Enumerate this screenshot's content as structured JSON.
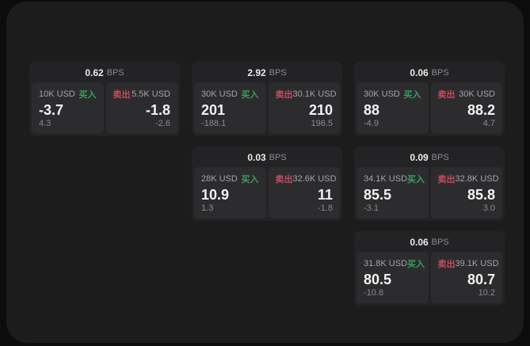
{
  "labels": {
    "bps": "BPS",
    "buy": "买入",
    "sell": "卖出"
  },
  "colors": {
    "buy_green": "#3a9e5e",
    "sell_red": "#c84b5e",
    "page_bg": "#0c0c0c",
    "window_bg": "#1c1c1d",
    "card_bg": "#232325",
    "panel_bg": "#2c2c2e"
  },
  "cards": [
    {
      "row": 1,
      "col": 1,
      "bps": "0.62",
      "buy": {
        "amount": "10K USD",
        "value": "-3.7",
        "delta": "4.3"
      },
      "sell": {
        "amount": "5.5K USD",
        "value": "-1.8",
        "delta": "-2.6"
      }
    },
    {
      "row": 1,
      "col": 2,
      "bps": "2.92",
      "buy": {
        "amount": "30K USD",
        "value": "201",
        "delta": "-188.1"
      },
      "sell": {
        "amount": "30.1K USD",
        "value": "210",
        "delta": "196.5"
      }
    },
    {
      "row": 1,
      "col": 3,
      "bps": "0.06",
      "buy": {
        "amount": "30K USD",
        "value": "88",
        "delta": "-4.9"
      },
      "sell": {
        "amount": "30K USD",
        "value": "88.2",
        "delta": "4.7"
      }
    },
    {
      "row": 2,
      "col": 2,
      "bps": "0.03",
      "buy": {
        "amount": "28K USD",
        "value": "10.9",
        "delta": "1.3"
      },
      "sell": {
        "amount": "32.6K USD",
        "value": "11",
        "delta": "-1.8"
      }
    },
    {
      "row": 2,
      "col": 3,
      "bps": "0.09",
      "buy": {
        "amount": "34.1K USD",
        "value": "85.5",
        "delta": "-3.1"
      },
      "sell": {
        "amount": "32.8K USD",
        "value": "85.8",
        "delta": "3.0"
      }
    },
    {
      "row": 3,
      "col": 3,
      "bps": "0.06",
      "buy": {
        "amount": "31.8K USD",
        "value": "80.5",
        "delta": "-10.8"
      },
      "sell": {
        "amount": "39.1K USD",
        "value": "80.7",
        "delta": "10.2"
      }
    }
  ]
}
